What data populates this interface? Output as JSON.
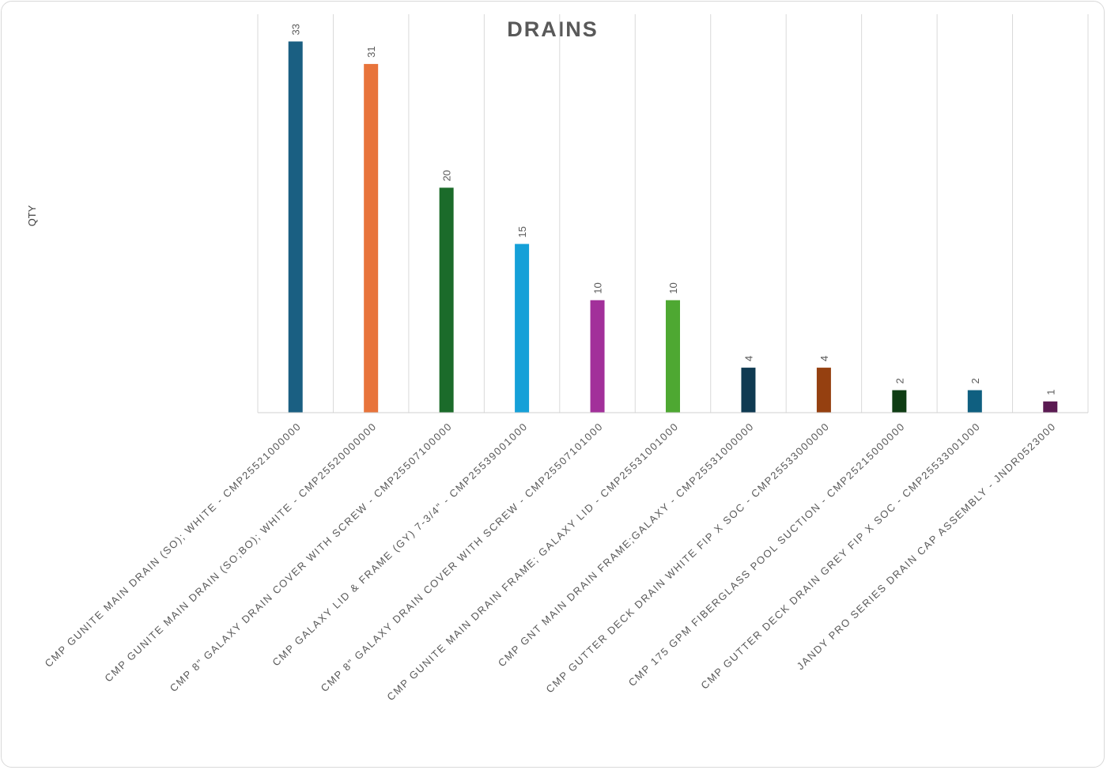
{
  "chart_data": {
    "type": "bar",
    "title": "DRAINS",
    "xlabel": "",
    "ylabel": "QTY",
    "ylim": [
      0,
      35
    ],
    "grid": "vertical category separators",
    "legend": "none",
    "categories": [
      "CMP GUNITE MAIN DRAIN (SO); WHITE - CMP25521000000",
      "CMP GUNITE MAIN DRAIN (SO;BO); WHITE - CMP25520000000",
      "CMP 8\" GALAXY DRAIN COVER WITH SCREW - CMP25507100000",
      "CMP GALAXY LID & FRAME (GY) 7-3/4\" - CMP25539001000",
      "CMP 8\" GALAXY DRAIN COVER WITH SCREW - CMP25507101000",
      "CMP GUNITE MAIN DRAIN FRAME; GALAXY LID - CMP25531001000",
      "CMP GNT MAIN DRAIN FRAME;GALAXY - CMP25531000000",
      "CMP GUTTER DECK DRAIN WHITE FIP X SOC - CMP25533000000",
      "CMP 175 GPM FIBERGLASS POOL SUCTION - CMP25215000000",
      "CMP GUTTER DECK DRAIN GREY FIP X SOC - CMP25533001000",
      "JANDY PRO SERIES DRAIN CAP ASSEMBLY - JNDR0523000"
    ],
    "values": [
      33,
      31,
      20,
      15,
      10,
      10,
      4,
      4,
      2,
      2,
      1
    ],
    "colors": [
      "#1a5f82",
      "#e8743b",
      "#1b6b2a",
      "#15a0d8",
      "#a2309a",
      "#4ea832",
      "#0f3a52",
      "#954010",
      "#0f3d14",
      "#0f5f80",
      "#5b1a52"
    ]
  }
}
